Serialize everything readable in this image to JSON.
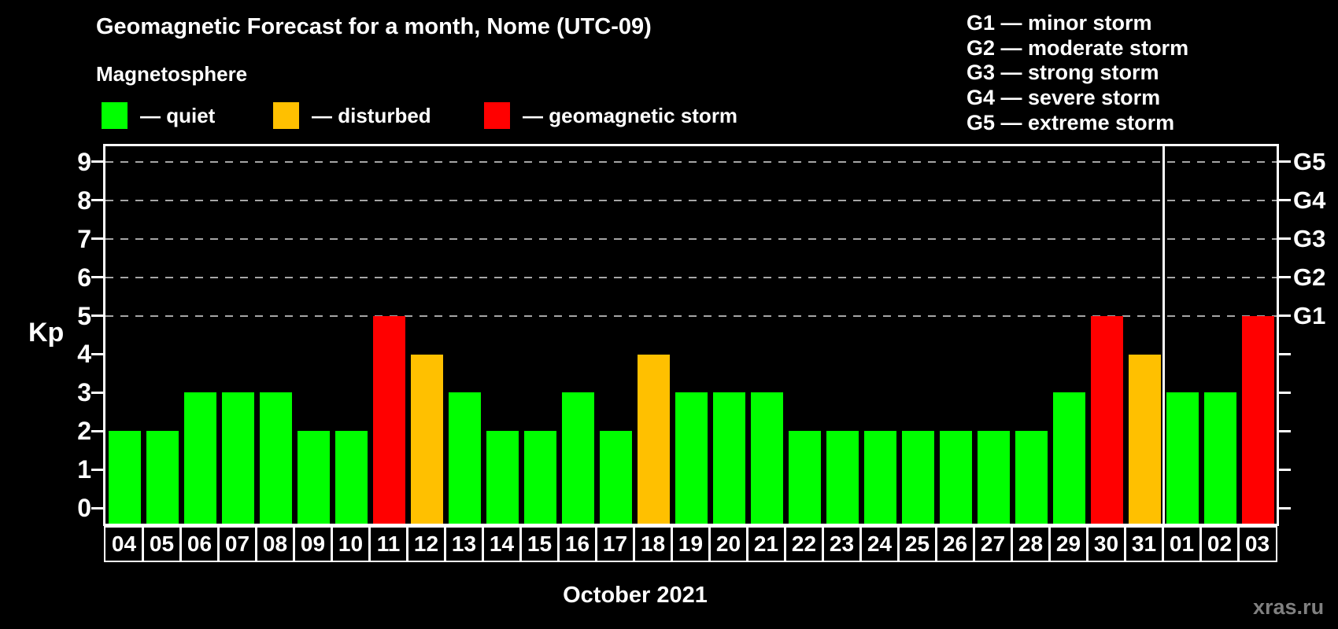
{
  "title": "Geomagnetic Forecast for a month, Nome (UTC-09)",
  "subtitle": "Magnetosphere",
  "legend": {
    "items": [
      {
        "name": "quiet",
        "label": "— quiet",
        "color": "#00ff00"
      },
      {
        "name": "disturbed",
        "label": "— disturbed",
        "color": "#ffc000"
      },
      {
        "name": "storm",
        "label": "— geomagnetic storm",
        "color": "#ff0000"
      }
    ]
  },
  "storm_scale": [
    "G1 — minor storm",
    "G2 — moderate storm",
    "G3 — strong storm",
    "G4 — severe storm",
    "G5 — extreme storm"
  ],
  "chart_data": {
    "type": "bar",
    "title": "Geomagnetic Forecast for a month, Nome (UTC-09)",
    "ylabel": "Kp",
    "xlabel": "October 2021",
    "ylim": [
      0,
      9
    ],
    "y_extended_range": [
      -0.4,
      9.4
    ],
    "yticks": [
      0,
      1,
      2,
      3,
      4,
      5,
      6,
      7,
      8,
      9
    ],
    "gridlines_at": [
      5,
      6,
      7,
      8,
      9
    ],
    "grid": "dashed-horizontal",
    "legend_position": "top",
    "right_axis": [
      {
        "kp": 5,
        "label": "G1"
      },
      {
        "kp": 6,
        "label": "G2"
      },
      {
        "kp": 7,
        "label": "G3"
      },
      {
        "kp": 8,
        "label": "G4"
      },
      {
        "kp": 9,
        "label": "G5"
      }
    ],
    "month_separator_after_index": 27,
    "status_colors": {
      "quiet": "#00ff00",
      "disturbed": "#ffc000",
      "storm": "#ff0000"
    },
    "bars": [
      {
        "day": "04",
        "kp": 2,
        "status": "quiet"
      },
      {
        "day": "05",
        "kp": 2,
        "status": "quiet"
      },
      {
        "day": "06",
        "kp": 3,
        "status": "quiet"
      },
      {
        "day": "07",
        "kp": 3,
        "status": "quiet"
      },
      {
        "day": "08",
        "kp": 3,
        "status": "quiet"
      },
      {
        "day": "09",
        "kp": 2,
        "status": "quiet"
      },
      {
        "day": "10",
        "kp": 2,
        "status": "quiet"
      },
      {
        "day": "11",
        "kp": 5,
        "status": "storm"
      },
      {
        "day": "12",
        "kp": 4,
        "status": "disturbed"
      },
      {
        "day": "13",
        "kp": 3,
        "status": "quiet"
      },
      {
        "day": "14",
        "kp": 2,
        "status": "quiet"
      },
      {
        "day": "15",
        "kp": 2,
        "status": "quiet"
      },
      {
        "day": "16",
        "kp": 3,
        "status": "quiet"
      },
      {
        "day": "17",
        "kp": 2,
        "status": "quiet"
      },
      {
        "day": "18",
        "kp": 4,
        "status": "disturbed"
      },
      {
        "day": "19",
        "kp": 3,
        "status": "quiet"
      },
      {
        "day": "20",
        "kp": 3,
        "status": "quiet"
      },
      {
        "day": "21",
        "kp": 3,
        "status": "quiet"
      },
      {
        "day": "22",
        "kp": 2,
        "status": "quiet"
      },
      {
        "day": "23",
        "kp": 2,
        "status": "quiet"
      },
      {
        "day": "24",
        "kp": 2,
        "status": "quiet"
      },
      {
        "day": "25",
        "kp": 2,
        "status": "quiet"
      },
      {
        "day": "26",
        "kp": 2,
        "status": "quiet"
      },
      {
        "day": "27",
        "kp": 2,
        "status": "quiet"
      },
      {
        "day": "28",
        "kp": 2,
        "status": "quiet"
      },
      {
        "day": "29",
        "kp": 3,
        "status": "quiet"
      },
      {
        "day": "30",
        "kp": 5,
        "status": "storm"
      },
      {
        "day": "31",
        "kp": 4,
        "status": "disturbed"
      },
      {
        "day": "01",
        "kp": 3,
        "status": "quiet"
      },
      {
        "day": "02",
        "kp": 3,
        "status": "quiet"
      },
      {
        "day": "03",
        "kp": 5,
        "status": "storm"
      }
    ]
  },
  "watermark": "xras.ru"
}
